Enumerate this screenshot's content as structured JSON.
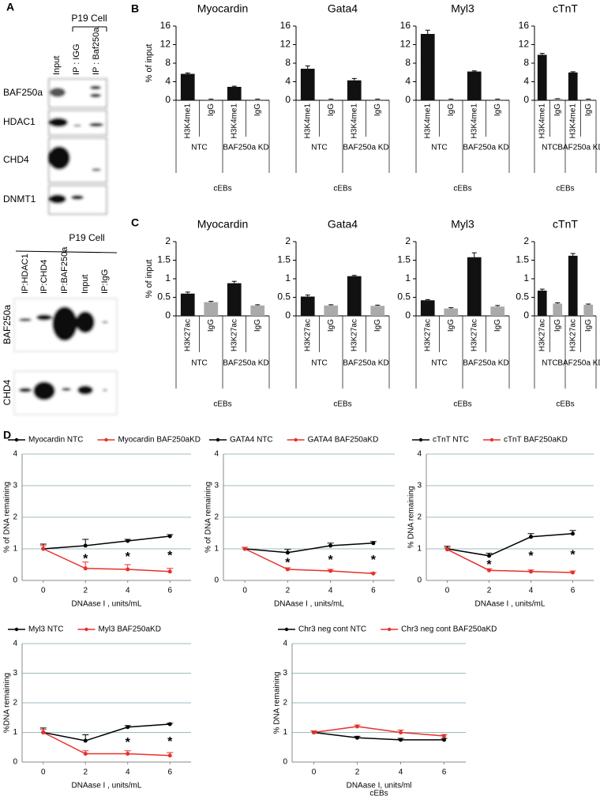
{
  "panel_labels": [
    "A",
    "B",
    "C",
    "D"
  ],
  "blot_top": {
    "header": "P19 Cell",
    "lanes": [
      "Input",
      "IP : IGG",
      "IP : Baf250a"
    ],
    "rows": [
      "BAF250a",
      "HDAC1",
      "CHD4",
      "DNMT1"
    ]
  },
  "blot_bottom": {
    "header": "P19 Cell",
    "lanes": [
      "IP:HDAC1",
      "IP:CHD4",
      "IP:BAF250a",
      "Input",
      "IP:IgG"
    ],
    "rows": [
      "BAF250a",
      "CHD4"
    ]
  },
  "chart_data": [
    {
      "type": "bar",
      "title": "Myocardin",
      "ylabel": "% of input",
      "categories": [
        "H3K4me1",
        "IgG",
        "H3K4me1",
        "IgG"
      ],
      "groups": [
        "NTC",
        "BAF250a KD"
      ],
      "xlabel": "cEBs",
      "values": [
        5.7,
        0.2,
        2.9,
        0.2
      ],
      "errors": [
        0.2,
        0.05,
        0.15,
        0.05
      ],
      "bar_colors": [
        "#111111",
        "#999999",
        "#111111",
        "#999999"
      ],
      "ylim": [
        0,
        16
      ],
      "yticks": [
        0,
        4,
        8,
        12,
        16
      ]
    },
    {
      "type": "bar",
      "title": "Gata4",
      "categories": [
        "H3K4me1",
        "IgG",
        "H3K4me1",
        "IgG"
      ],
      "groups": [
        "NTC",
        "BAF250a KD"
      ],
      "xlabel": "cEBs",
      "values": [
        6.8,
        0.2,
        4.3,
        0.2
      ],
      "errors": [
        0.6,
        0.05,
        0.4,
        0.05
      ],
      "bar_colors": [
        "#111111",
        "#999999",
        "#111111",
        "#999999"
      ],
      "ylim": [
        0,
        16
      ],
      "yticks": [
        0,
        4,
        8,
        12,
        16
      ]
    },
    {
      "type": "bar",
      "title": "Myl3",
      "categories": [
        "H3K4me1",
        "IgG",
        "H3K4me1",
        "IgG"
      ],
      "groups": [
        "NTC",
        "BAF250a KD"
      ],
      "xlabel": "cEBs",
      "values": [
        14.3,
        0.2,
        6.2,
        0.2
      ],
      "errors": [
        0.8,
        0.05,
        0.15,
        0.05
      ],
      "bar_colors": [
        "#111111",
        "#999999",
        "#111111",
        "#999999"
      ],
      "ylim": [
        0,
        16
      ],
      "yticks": [
        0,
        4,
        8,
        12,
        16
      ]
    },
    {
      "type": "bar",
      "title": "cTnT",
      "categories": [
        "H3K4me1",
        "IgG",
        "H3K4me1",
        "IgG"
      ],
      "groups": [
        "NTC",
        "BAF250a KD"
      ],
      "xlabel": "cEBs",
      "values": [
        9.8,
        0.3,
        6.0,
        0.2
      ],
      "errors": [
        0.3,
        0.05,
        0.15,
        0.05
      ],
      "bar_colors": [
        "#111111",
        "#999999",
        "#111111",
        "#999999"
      ],
      "ylim": [
        0,
        16
      ],
      "yticks": [
        0,
        4,
        8,
        12,
        16
      ]
    },
    {
      "type": "bar",
      "title": "Myocardin",
      "ylabel": "% of input",
      "categories": [
        "H3K27ac",
        "IgG",
        "H3K27ac",
        "IgG"
      ],
      "groups": [
        "NTC",
        "BAF250a KD"
      ],
      "xlabel": "cEBs",
      "values": [
        0.6,
        0.37,
        0.88,
        0.28
      ],
      "errors": [
        0.04,
        0.02,
        0.05,
        0.02
      ],
      "bar_colors": [
        "#111111",
        "#aaaaaa",
        "#111111",
        "#aaaaaa"
      ],
      "ylim": [
        0,
        2
      ],
      "yticks": [
        0,
        0.5,
        1,
        1.5,
        2
      ]
    },
    {
      "type": "bar",
      "title": "Gata4",
      "categories": [
        "H3K27ac",
        "IgG",
        "H3K27ac",
        "IgG"
      ],
      "groups": [
        "NTC",
        "BAF250a KD"
      ],
      "xlabel": "cEBs",
      "values": [
        0.52,
        0.28,
        1.07,
        0.27
      ],
      "errors": [
        0.04,
        0.02,
        0.02,
        0.02
      ],
      "bar_colors": [
        "#111111",
        "#aaaaaa",
        "#111111",
        "#aaaaaa"
      ],
      "ylim": [
        0,
        2
      ],
      "yticks": [
        0,
        0.5,
        1,
        1.5,
        2
      ]
    },
    {
      "type": "bar",
      "title": "Myl3",
      "categories": [
        "H3K27ac",
        "IgG",
        "H3K27ac",
        "IgG"
      ],
      "groups": [
        "NTC",
        "BAF250a KD"
      ],
      "xlabel": "cEBs",
      "values": [
        0.42,
        0.2,
        1.58,
        0.25
      ],
      "errors": [
        0.02,
        0.02,
        0.12,
        0.03
      ],
      "bar_colors": [
        "#111111",
        "#aaaaaa",
        "#111111",
        "#aaaaaa"
      ],
      "ylim": [
        0,
        2
      ],
      "yticks": [
        0,
        0.5,
        1,
        1.5,
        2
      ]
    },
    {
      "type": "bar",
      "title": "cTnT",
      "categories": [
        "H3K27ac",
        "IgG",
        "H3K27ac",
        "IgG"
      ],
      "groups": [
        "NTC",
        "BAF250a KD"
      ],
      "xlabel": "cEBs",
      "values": [
        0.68,
        0.33,
        1.62,
        0.3
      ],
      "errors": [
        0.04,
        0.02,
        0.06,
        0.02
      ],
      "bar_colors": [
        "#111111",
        "#aaaaaa",
        "#111111",
        "#aaaaaa"
      ],
      "ylim": [
        0,
        2
      ],
      "yticks": [
        0,
        0.5,
        1,
        1.5,
        2
      ]
    },
    {
      "type": "line",
      "ylabel": "% of DNA remaining",
      "xlabel": "DNAase I , units/mL",
      "x": [
        0,
        2,
        4,
        6
      ],
      "xlim": [
        -1,
        7
      ],
      "xticks": [
        0,
        2,
        4,
        6
      ],
      "ylim": [
        0,
        4
      ],
      "yticks": [
        0,
        1,
        2,
        3,
        4
      ],
      "grid": true,
      "legend": "top",
      "series": [
        {
          "name": "Myocardin NTC",
          "color": "#000000",
          "values": [
            1.0,
            1.1,
            1.25,
            1.4
          ],
          "errors": [
            0.15,
            0.2,
            0.05,
            0.05
          ]
        },
        {
          "name": "Myocardin BAF250aKD",
          "color": "#e8302a",
          "values": [
            1.0,
            0.38,
            0.35,
            0.28
          ],
          "errors": [
            0.1,
            0.2,
            0.15,
            0.1
          ]
        }
      ],
      "annotations": [
        {
          "x": 2,
          "text": "*"
        },
        {
          "x": 4,
          "text": "*"
        },
        {
          "x": 6,
          "text": "*"
        }
      ]
    },
    {
      "type": "line",
      "ylabel": "% of DNA remaining",
      "xlabel": "DNAase I , units/mL",
      "x": [
        0,
        2,
        4,
        6
      ],
      "xlim": [
        -1,
        7
      ],
      "xticks": [
        0,
        2,
        4,
        6
      ],
      "ylim": [
        0,
        4
      ],
      "yticks": [
        0,
        1,
        2,
        3,
        4
      ],
      "grid": true,
      "legend": "top",
      "series": [
        {
          "name": "GATA4 NTC",
          "color": "#000000",
          "values": [
            1.0,
            0.88,
            1.1,
            1.18
          ],
          "errors": [
            0.05,
            0.1,
            0.08,
            0.05
          ]
        },
        {
          "name": "GATA4 BAF250aKD",
          "color": "#e8302a",
          "values": [
            1.0,
            0.35,
            0.3,
            0.22
          ],
          "errors": [
            0.05,
            0.05,
            0.05,
            0.03
          ]
        }
      ],
      "annotations": [
        {
          "x": 2,
          "text": "*"
        },
        {
          "x": 4,
          "text": "*"
        },
        {
          "x": 6,
          "text": "*"
        }
      ]
    },
    {
      "type": "line",
      "ylabel": "% DNA remaining",
      "xlabel": "DNAase I , units/mL",
      "x": [
        0,
        2,
        4,
        6
      ],
      "xlim": [
        -1,
        7
      ],
      "xticks": [
        0,
        2,
        4,
        6
      ],
      "ylim": [
        0,
        4
      ],
      "yticks": [
        0,
        1,
        2,
        3,
        4
      ],
      "grid": true,
      "legend": "top",
      "series": [
        {
          "name": "cTnT NTC",
          "color": "#000000",
          "values": [
            1.0,
            0.78,
            1.38,
            1.48
          ],
          "errors": [
            0.08,
            0.08,
            0.1,
            0.1
          ]
        },
        {
          "name": "cTnT BAF250aKD",
          "color": "#e8302a",
          "values": [
            0.98,
            0.32,
            0.28,
            0.25
          ],
          "errors": [
            0.05,
            0.05,
            0.05,
            0.05
          ]
        }
      ],
      "annotations": [
        {
          "x": 2,
          "text": "*"
        },
        {
          "x": 4,
          "text": "*"
        },
        {
          "x": 6,
          "text": "*"
        }
      ]
    },
    {
      "type": "line",
      "ylabel": "%DNA remaining",
      "xlabel": "DNAase I , units/mL",
      "x": [
        0,
        2,
        4,
        6
      ],
      "xlim": [
        -1,
        7
      ],
      "xticks": [
        0,
        2,
        4,
        6
      ],
      "ylim": [
        0,
        4
      ],
      "yticks": [
        0,
        1,
        2,
        3,
        4
      ],
      "grid": true,
      "legend": "top",
      "series": [
        {
          "name": "Myl3 NTC",
          "color": "#000000",
          "values": [
            1.0,
            0.72,
            1.18,
            1.28
          ],
          "errors": [
            0.15,
            0.2,
            0.05,
            0.03
          ]
        },
        {
          "name": "Myl3 BAF250aKD",
          "color": "#e8302a",
          "values": [
            1.0,
            0.28,
            0.28,
            0.22
          ],
          "errors": [
            0.1,
            0.1,
            0.1,
            0.1
          ]
        }
      ],
      "annotations": [
        {
          "x": 4,
          "text": "*"
        },
        {
          "x": 6,
          "text": "*"
        }
      ]
    },
    {
      "type": "line",
      "ylabel": "% DNA remaining",
      "xlabel": "DNAase I, units/ml",
      "footer": "cEBs",
      "x": [
        0,
        2,
        4,
        6
      ],
      "xlim": [
        -1,
        7
      ],
      "xticks": [
        0,
        2,
        4,
        6
      ],
      "ylim": [
        0,
        4
      ],
      "yticks": [
        0,
        1,
        2,
        3,
        4
      ],
      "grid": true,
      "legend": "top",
      "series": [
        {
          "name": "Chr3 neg cont NTC",
          "color": "#000000",
          "values": [
            1.0,
            0.82,
            0.75,
            0.75
          ],
          "errors": [
            0.05,
            0.05,
            0.05,
            0.05
          ]
        },
        {
          "name": "Chr3 neg cont BAF250aKD",
          "color": "#e8302a",
          "values": [
            1.0,
            1.2,
            1.0,
            0.88
          ],
          "errors": [
            0.05,
            0.05,
            0.08,
            0.05
          ]
        }
      ]
    }
  ]
}
